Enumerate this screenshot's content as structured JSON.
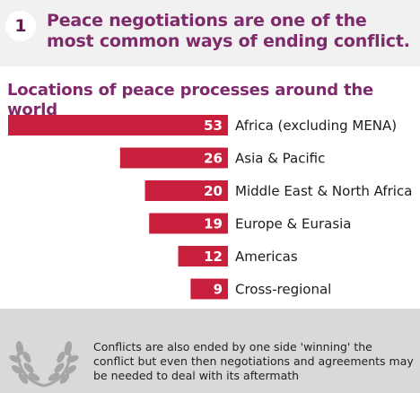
{
  "header": {
    "step_number": "1",
    "headline": "Peace negotiations are one of the most common ways of ending conflict."
  },
  "chart_data": {
    "type": "bar",
    "orientation": "horizontal",
    "title": "Locations of peace processes around the world",
    "categories": [
      "Africa (excluding MENA)",
      "Asia & Pacific",
      "Middle East & North Africa",
      "Europe & Eurasia",
      "Americas",
      "Cross-regional"
    ],
    "values": [
      53,
      26,
      20,
      19,
      12,
      9
    ],
    "data_labels": [
      "53",
      "26",
      "20",
      "19",
      "12",
      "9"
    ],
    "grid": false,
    "legend": "none",
    "color": "#c8203c"
  },
  "footer": {
    "icon": "laurel-wreath-icon",
    "note": "Conflicts are also ended by one side 'winning' the conflict but even then negotiations and agreements may be needed to deal with its aftermath"
  }
}
